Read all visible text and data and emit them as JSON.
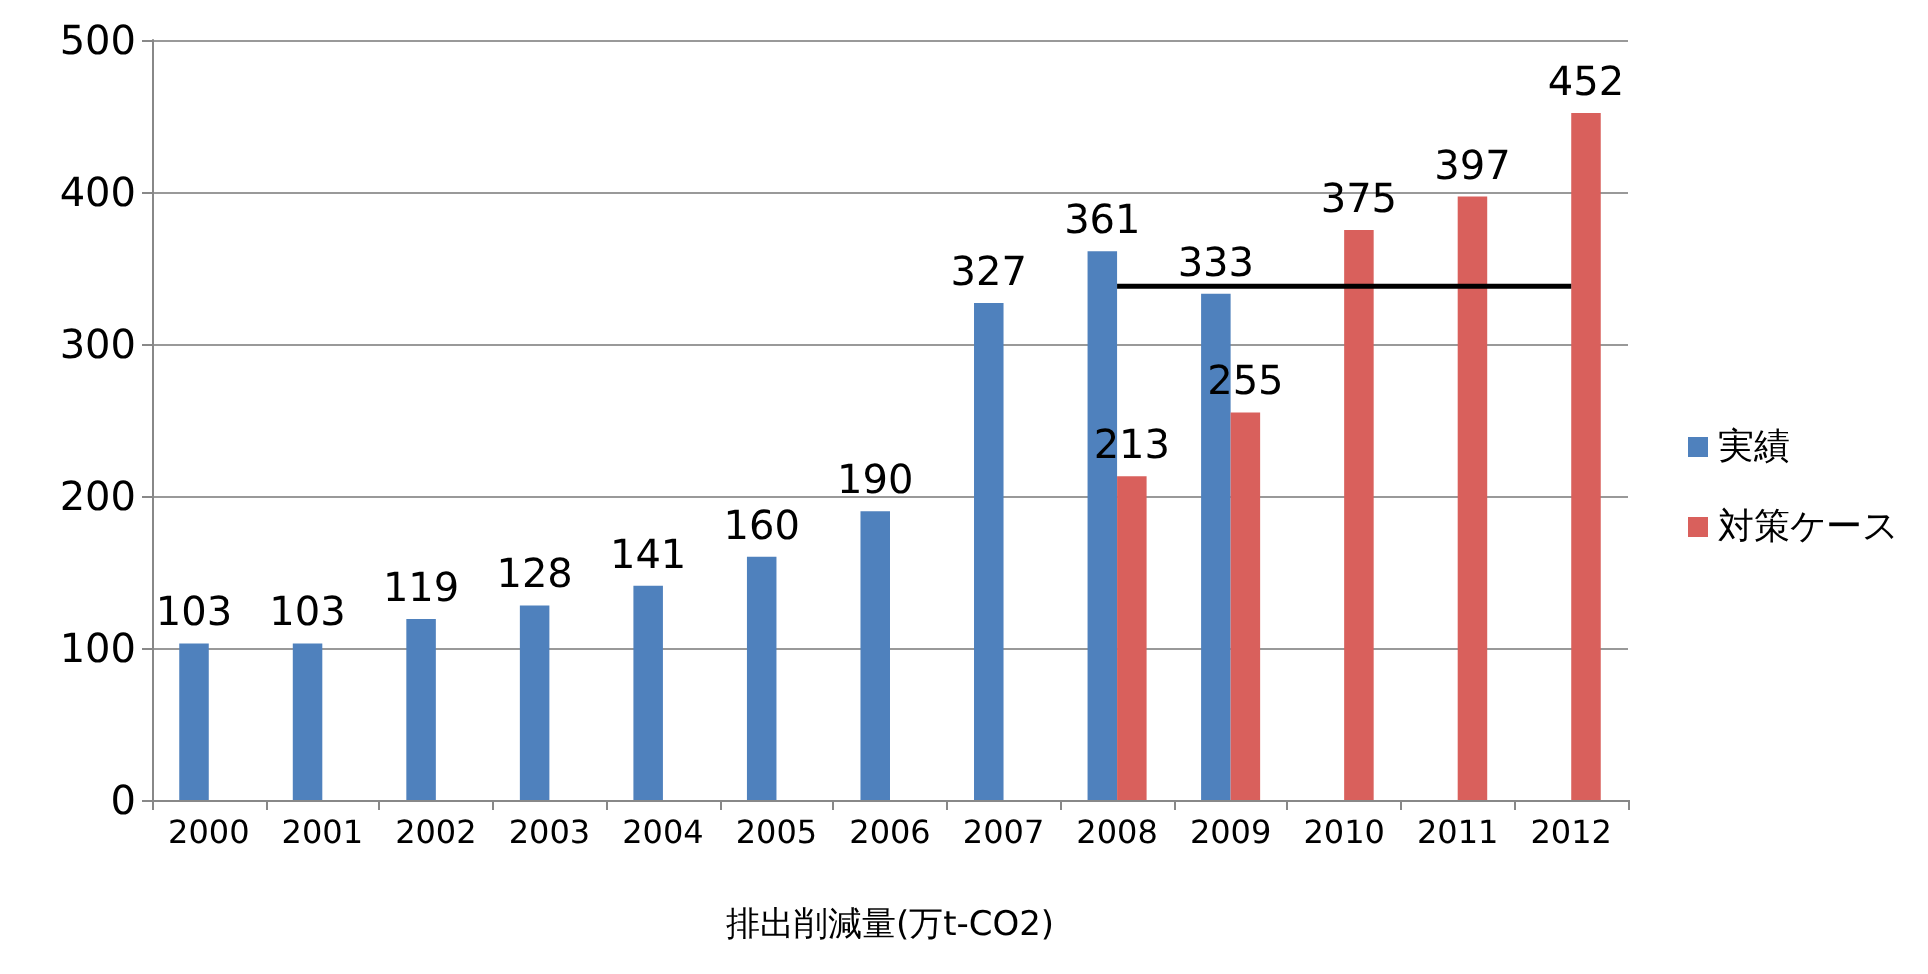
{
  "chart_data": {
    "type": "bar",
    "xlabel": "排出削減量(万t-CO2)",
    "categories": [
      "2000",
      "2001",
      "2002",
      "2003",
      "2004",
      "2005",
      "2006",
      "2007",
      "2008",
      "2009",
      "2010",
      "2011",
      "2012"
    ],
    "series": [
      {
        "name": "実績",
        "color": "#4f81bd",
        "values": [
          103,
          103,
          119,
          128,
          141,
          160,
          190,
          327,
          361,
          333,
          null,
          null,
          null
        ],
        "value_labels": [
          "103",
          "103",
          "119",
          "128",
          "141",
          "160",
          "190",
          "327",
          "361",
          "333",
          null,
          null,
          null
        ]
      },
      {
        "name": "対策ケース",
        "color": "#d9605c",
        "values": [
          null,
          null,
          null,
          null,
          null,
          null,
          null,
          null,
          213,
          255,
          375,
          397,
          452
        ],
        "value_labels": [
          null,
          null,
          null,
          null,
          null,
          null,
          null,
          null,
          "213",
          "255",
          "375",
          "397",
          "452"
        ]
      },
      {
        "type": "line",
        "color": "#000000",
        "marker": "none",
        "values": [
          null,
          null,
          null,
          null,
          null,
          null,
          null,
          null,
          338,
          338,
          338,
          338,
          338
        ]
      }
    ],
    "ylim": [
      0,
      500
    ],
    "yticks": [
      0,
      100,
      200,
      300,
      400,
      500
    ],
    "grid": "y",
    "legend": "right"
  }
}
